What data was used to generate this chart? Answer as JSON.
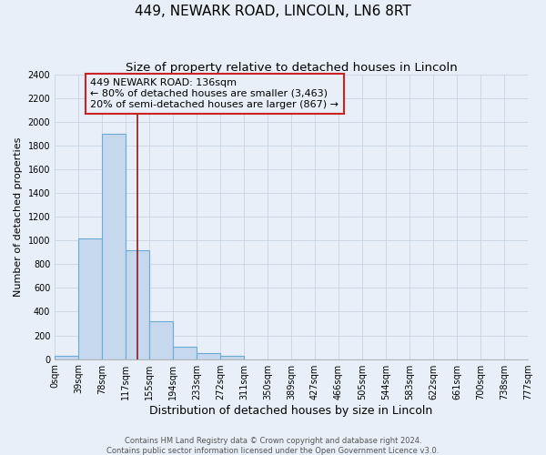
{
  "title": "449, NEWARK ROAD, LINCOLN, LN6 8RT",
  "subtitle": "Size of property relative to detached houses in Lincoln",
  "xlabel": "Distribution of detached houses by size in Lincoln",
  "ylabel": "Number of detached properties",
  "bar_edges": [
    0,
    39,
    78,
    117,
    155,
    194,
    233,
    272,
    311,
    350,
    389,
    427,
    466,
    505,
    544,
    583,
    622,
    661,
    700,
    738,
    777
  ],
  "bar_heights": [
    25,
    1020,
    1900,
    920,
    320,
    105,
    50,
    25,
    0,
    0,
    0,
    0,
    0,
    0,
    0,
    0,
    0,
    0,
    0,
    0
  ],
  "bar_color": "#c5d8ee",
  "bar_edgecolor": "#6aaad4",
  "bar_linewidth": 0.8,
  "vline_x": 136,
  "vline_color": "#8b1a1a",
  "vline_linewidth": 1.2,
  "annotation_line1": "449 NEWARK ROAD: 136sqm",
  "annotation_line2": "← 80% of detached houses are smaller (3,463)",
  "annotation_line3": "20% of semi-detached houses are larger (867) →",
  "box_edgecolor": "#cc2222",
  "ylim": [
    0,
    2400
  ],
  "yticks": [
    0,
    200,
    400,
    600,
    800,
    1000,
    1200,
    1400,
    1600,
    1800,
    2000,
    2200,
    2400
  ],
  "xtick_labels": [
    "0sqm",
    "39sqm",
    "78sqm",
    "117sqm",
    "155sqm",
    "194sqm",
    "233sqm",
    "272sqm",
    "311sqm",
    "350sqm",
    "389sqm",
    "427sqm",
    "466sqm",
    "505sqm",
    "544sqm",
    "583sqm",
    "622sqm",
    "661sqm",
    "700sqm",
    "738sqm",
    "777sqm"
  ],
  "background_color": "#e8eff8",
  "plot_bg_color": "#e8eff8",
  "grid_color": "#c8d4e4",
  "footer_line1": "Contains HM Land Registry data © Crown copyright and database right 2024.",
  "footer_line2": "Contains public sector information licensed under the Open Government Licence v3.0.",
  "title_fontsize": 11,
  "subtitle_fontsize": 9.5,
  "xlabel_fontsize": 9,
  "ylabel_fontsize": 8,
  "tick_fontsize": 7,
  "footer_fontsize": 6,
  "ann_fontsize": 8
}
